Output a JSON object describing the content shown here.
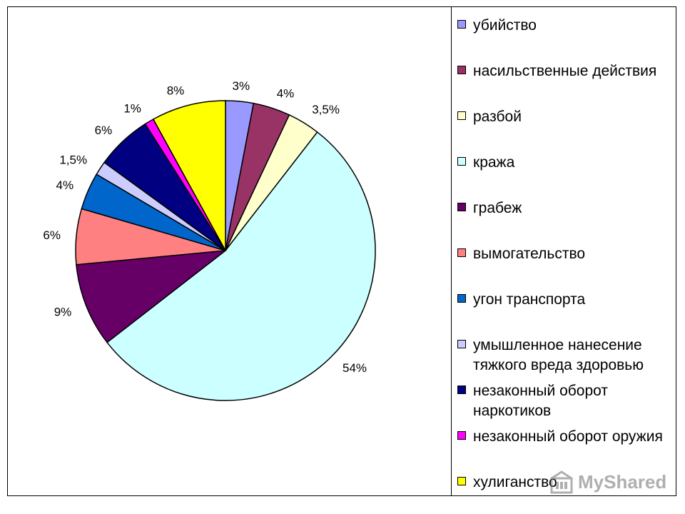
{
  "chart_data": {
    "type": "pie",
    "slices": [
      {
        "name": "убийство",
        "value": 3,
        "label": "3%",
        "color": "#9999ff"
      },
      {
        "name": "насильственные действия",
        "value": 4,
        "label": "4%",
        "color": "#993366"
      },
      {
        "name": "разбой",
        "value": 3.5,
        "label": "3,5%",
        "color": "#ffffcc"
      },
      {
        "name": "кража",
        "value": 54,
        "label": "54%",
        "color": "#ccffff"
      },
      {
        "name": "грабеж",
        "value": 9,
        "label": "9%",
        "color": "#660066"
      },
      {
        "name": "вымогательство",
        "value": 6,
        "label": "6%",
        "color": "#ff8080"
      },
      {
        "name": "угон транспорта",
        "value": 4,
        "label": "4%",
        "color": "#0066cc"
      },
      {
        "name": "умышленное нанесение тяжкого вреда здоровью",
        "value": 1.5,
        "label": "1,5%",
        "color": "#ccccff"
      },
      {
        "name": "незаконный оборот наркотиков",
        "value": 6,
        "label": "6%",
        "color": "#000080"
      },
      {
        "name": "незаконный оборот оружия",
        "value": 1,
        "label": "1%",
        "color": "#ff00ff"
      },
      {
        "name": "хулиганство",
        "value": 8,
        "label": "8%",
        "color": "#ffff00"
      }
    ],
    "legend_position": "right"
  },
  "legend": {
    "items": [
      "убийство",
      "насильственные действия",
      "разбой",
      "кража",
      "грабеж",
      "вымогательство",
      "угон транспорта",
      "умышленное нанесение тяжкого вреда здоровью",
      "незаконный оборот наркотиков",
      "незаконный оборот оружия",
      "хулиганство"
    ]
  },
  "watermark": {
    "text": "MyShared",
    "icon": "building-icon"
  }
}
